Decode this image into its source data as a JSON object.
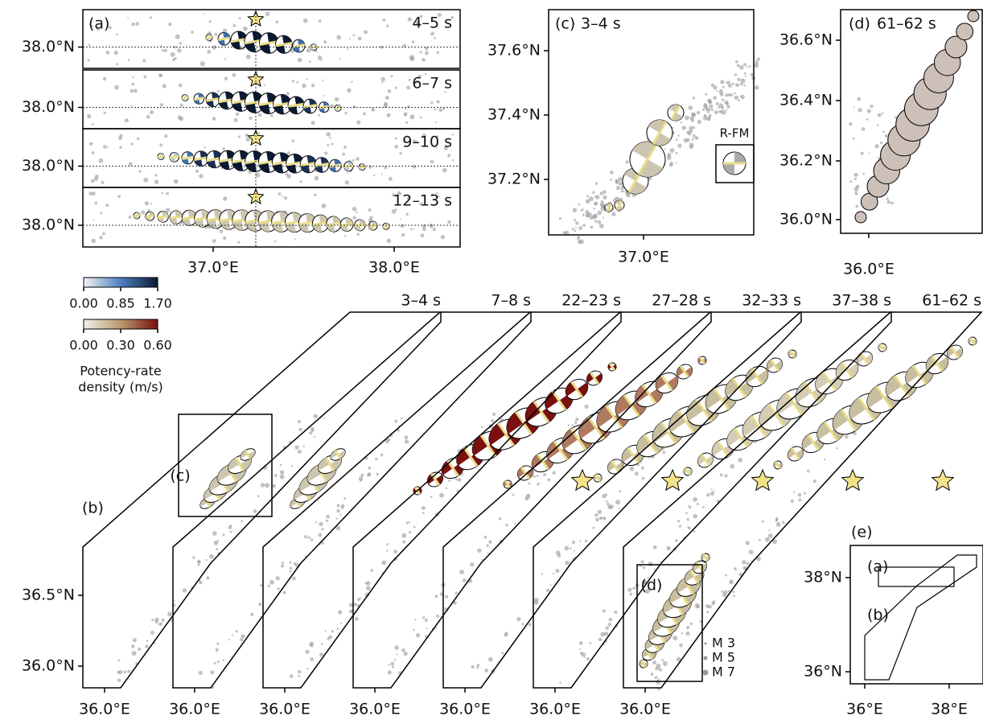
{
  "panel_a": {
    "label": "(a)",
    "time_windows": [
      "4–5 s",
      "6–7 s",
      "9–10 s",
      "12–13 s"
    ],
    "y_tick": "38.0°N",
    "x_ticks": [
      "37.0°E",
      "38.0°E"
    ]
  },
  "panel_c": {
    "label": "(c)",
    "time_window": "3–4 s",
    "y_ticks": [
      "37.6°N",
      "37.4°N",
      "37.2°N"
    ],
    "x_tick": "37.0°E",
    "inset_label": "R-FM"
  },
  "panel_d": {
    "label": "(d)",
    "time_window": "61–62 s",
    "y_ticks": [
      "36.6°N",
      "36.4°N",
      "36.2°N",
      "36.0°N"
    ],
    "x_tick": "36.0°E"
  },
  "colorbars": [
    {
      "ticks": [
        "0.00",
        "0.85",
        "1.70"
      ]
    },
    {
      "ticks": [
        "0.00",
        "0.30",
        "0.60"
      ]
    }
  ],
  "colorbar_title": [
    "Potency-rate",
    "density (m/s)"
  ],
  "panel_b": {
    "label": "(b)",
    "time_windows": [
      "3–4 s",
      "7–8 s",
      "22–23 s",
      "27–28 s",
      "32–33 s",
      "37–38 s",
      "61–62 s"
    ],
    "y_ticks": [
      "36.5°N",
      "36.0°N"
    ],
    "x_tick": "36.0°E",
    "inset_labels": [
      "(c)",
      "(d)"
    ]
  },
  "legend": [
    "M 3",
    "M 5",
    "M 7"
  ],
  "panel_e": {
    "label": "(e)",
    "y_ticks": [
      "38°N",
      "36°N"
    ],
    "x_ticks": [
      "36°E",
      "38°E"
    ],
    "box_labels": [
      "(a)",
      "(b)"
    ]
  }
}
